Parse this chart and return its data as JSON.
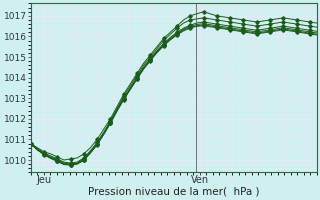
{
  "bg_color": "#cff0f0",
  "grid_color": "#e8e8f8",
  "line_color": "#1a5c1a",
  "xlabel": "Pression niveau de la mer(  hPa )",
  "yticks": [
    1010,
    1011,
    1012,
    1013,
    1014,
    1015,
    1016,
    1017
  ],
  "ylim": [
    1009.4,
    1017.6
  ],
  "xlim": [
    0,
    44
  ],
  "xtick_labels": [
    "Jeu",
    "Ven"
  ],
  "xtick_positions": [
    2,
    26
  ],
  "separator_x": 25.5,
  "lines": [
    [
      1010.8,
      1010.6,
      1010.4,
      1010.3,
      1010.15,
      1010.0,
      1010.05,
      1010.1,
      1010.3,
      1010.6,
      1011.0,
      1011.5,
      1012.0,
      1012.6,
      1013.2,
      1013.7,
      1014.2,
      1014.7,
      1015.1,
      1015.5,
      1015.9,
      1016.2,
      1016.5,
      1016.8,
      1017.0,
      1017.1,
      1017.2,
      1017.1,
      1017.0,
      1016.95,
      1016.9,
      1016.85,
      1016.8,
      1016.75,
      1016.7,
      1016.75,
      1016.8,
      1016.85,
      1016.9,
      1016.85,
      1016.8,
      1016.75,
      1016.7,
      1016.65
    ],
    [
      1010.8,
      1010.55,
      1010.35,
      1010.2,
      1010.05,
      1009.9,
      1009.85,
      1009.9,
      1010.1,
      1010.45,
      1010.85,
      1011.35,
      1011.9,
      1012.5,
      1013.1,
      1013.6,
      1014.1,
      1014.6,
      1015.0,
      1015.4,
      1015.8,
      1016.1,
      1016.4,
      1016.65,
      1016.8,
      1016.85,
      1016.9,
      1016.85,
      1016.8,
      1016.75,
      1016.7,
      1016.65,
      1016.6,
      1016.55,
      1016.5,
      1016.55,
      1016.6,
      1016.65,
      1016.7,
      1016.65,
      1016.6,
      1016.55,
      1016.5,
      1016.45
    ],
    [
      1010.8,
      1010.5,
      1010.3,
      1010.15,
      1010.0,
      1009.85,
      1009.8,
      1009.85,
      1010.05,
      1010.4,
      1010.8,
      1011.3,
      1011.85,
      1012.45,
      1013.0,
      1013.5,
      1014.0,
      1014.5,
      1014.9,
      1015.3,
      1015.65,
      1015.95,
      1016.2,
      1016.4,
      1016.55,
      1016.65,
      1016.7,
      1016.65,
      1016.6,
      1016.55,
      1016.5,
      1016.45,
      1016.4,
      1016.35,
      1016.3,
      1016.35,
      1016.4,
      1016.45,
      1016.5,
      1016.45,
      1016.4,
      1016.35,
      1016.3,
      1016.25
    ],
    [
      1010.8,
      1010.5,
      1010.28,
      1010.12,
      1009.97,
      1009.82,
      1009.78,
      1009.83,
      1010.02,
      1010.38,
      1010.78,
      1011.28,
      1011.82,
      1012.42,
      1012.97,
      1013.47,
      1013.97,
      1014.47,
      1014.87,
      1015.27,
      1015.6,
      1015.9,
      1016.15,
      1016.35,
      1016.5,
      1016.58,
      1016.62,
      1016.57,
      1016.52,
      1016.47,
      1016.42,
      1016.37,
      1016.32,
      1016.27,
      1016.22,
      1016.27,
      1016.32,
      1016.37,
      1016.42,
      1016.37,
      1016.32,
      1016.27,
      1016.22,
      1016.17
    ],
    [
      1010.8,
      1010.5,
      1010.27,
      1010.1,
      1009.95,
      1009.8,
      1009.77,
      1009.82,
      1010.0,
      1010.36,
      1010.76,
      1011.26,
      1011.8,
      1012.4,
      1012.95,
      1013.45,
      1013.95,
      1014.44,
      1014.84,
      1015.24,
      1015.57,
      1015.86,
      1016.1,
      1016.3,
      1016.44,
      1016.52,
      1016.56,
      1016.51,
      1016.46,
      1016.41,
      1016.36,
      1016.31,
      1016.26,
      1016.21,
      1016.16,
      1016.21,
      1016.26,
      1016.31,
      1016.36,
      1016.31,
      1016.26,
      1016.21,
      1016.16,
      1016.11
    ],
    [
      1010.8,
      1010.5,
      1010.26,
      1010.08,
      1009.93,
      1009.78,
      1009.75,
      1009.8,
      1009.98,
      1010.34,
      1010.74,
      1011.24,
      1011.78,
      1012.38,
      1012.93,
      1013.43,
      1013.93,
      1014.42,
      1014.82,
      1015.21,
      1015.54,
      1015.83,
      1016.07,
      1016.27,
      1016.41,
      1016.49,
      1016.52,
      1016.47,
      1016.42,
      1016.37,
      1016.32,
      1016.27,
      1016.22,
      1016.17,
      1016.12,
      1016.17,
      1016.22,
      1016.27,
      1016.32,
      1016.27,
      1016.22,
      1016.17,
      1016.12,
      1016.07
    ]
  ]
}
